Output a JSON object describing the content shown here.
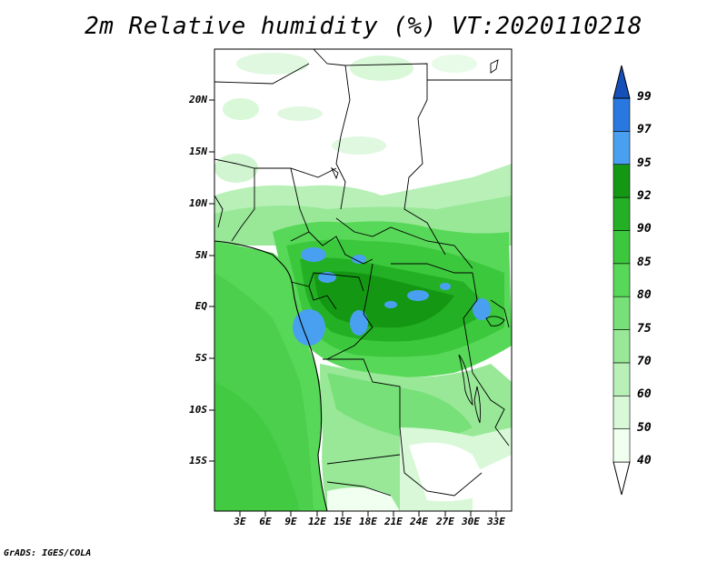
{
  "title": "2m Relative humidity (%) VT:2020110218",
  "credit": "GrADS: IGES/COLA",
  "map": {
    "variable": "2m Relative humidity",
    "units": "%",
    "region": "Central Africa",
    "lon_range": [
      0,
      35
    ],
    "lat_range": [
      -20,
      25
    ]
  },
  "axes": {
    "lat_ticks": [
      "20N",
      "15N",
      "10N",
      "5N",
      "EQ",
      "5S",
      "10S",
      "15S"
    ],
    "lon_ticks": [
      "3E",
      "6E",
      "9E",
      "12E",
      "15E",
      "18E",
      "21E",
      "24E",
      "27E",
      "30E",
      "33E"
    ]
  },
  "legend": {
    "levels": [
      "40",
      "50",
      "60",
      "70",
      "75",
      "80",
      "85",
      "90",
      "92",
      "95",
      "97",
      "99"
    ],
    "colors": [
      "#f0fff0",
      "#d8f8d8",
      "#b8f0b8",
      "#98e898",
      "#78e078",
      "#58d858",
      "#3cc83c",
      "#24b024",
      "#149814",
      "#4aa0f0",
      "#2878e0",
      "#1450b8"
    ]
  }
}
